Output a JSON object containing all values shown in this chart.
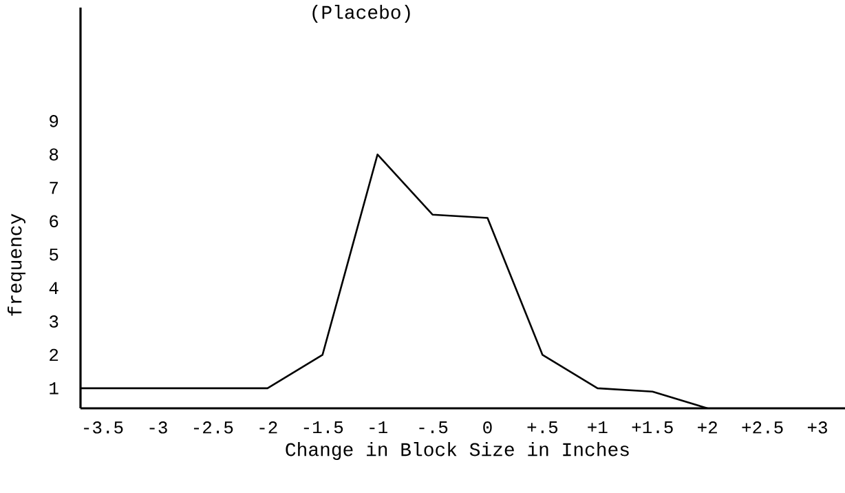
{
  "chart_data": {
    "type": "line",
    "title": "(Placebo)",
    "xlabel": "Change in Block Size in Inches",
    "ylabel": "frequency",
    "x": [
      -3.7,
      -2,
      -1.5,
      -1,
      -0.5,
      0,
      0.5,
      1,
      1.5,
      2
    ],
    "values": [
      1,
      1,
      2,
      8,
      6.2,
      6.1,
      2,
      1,
      0.9,
      0.4
    ],
    "color": "#000000",
    "line_style": "solid",
    "xlim": [
      -3.7,
      3.25
    ],
    "ylim": [
      0.4,
      12.4
    ],
    "xticks": [
      {
        "value": -3.5,
        "label": "-3.5"
      },
      {
        "value": -3,
        "label": "-3"
      },
      {
        "value": -2.5,
        "label": "-2.5"
      },
      {
        "value": -2,
        "label": "-2"
      },
      {
        "value": -1.5,
        "label": "-1.5"
      },
      {
        "value": -1,
        "label": "-1"
      },
      {
        "value": -0.5,
        "label": "-.5"
      },
      {
        "value": 0,
        "label": "0"
      },
      {
        "value": 0.5,
        "label": "+.5"
      },
      {
        "value": 1,
        "label": "+1"
      },
      {
        "value": 1.5,
        "label": "+1.5"
      },
      {
        "value": 2,
        "label": "+2"
      },
      {
        "value": 2.5,
        "label": "+2.5"
      },
      {
        "value": 3,
        "label": "+3"
      }
    ],
    "yticks": [
      1,
      2,
      3,
      4,
      5,
      6,
      7,
      8,
      9
    ]
  }
}
